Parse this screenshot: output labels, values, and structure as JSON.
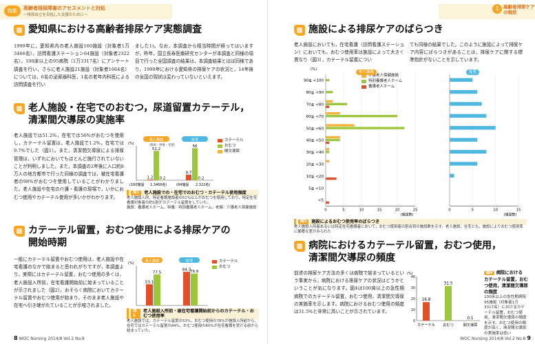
{
  "left": {
    "header": {
      "tag": "特集",
      "title": "高齢者排尿障害のアセスメントと対処",
      "subtitle": "～排尿自立を目指した支援のために～"
    },
    "s1": {
      "title": "愛知県における高齢者排尿ケア実態調査",
      "col1": "1999年に，愛知県内の老人施設160施設（対象者1万3466名），訪問看護ステーション64施設（対象者2322名），100床以上の95病院（1万3317名）にアンケート調査を行い，さらに老人施設21施設（対象者1664名）については，6名の泌尿器科医，1名の老年内科医による訪問調査を行い",
      "col2": "ました1)。なお，本調査から相当時間が経ってはいますが，昨年，国立長寿医療研究センターが本調査と同様の項目で行った全国調査の結果は，本調査結果とほぼ同様であり，1999年における愛知県の排尿ケアの状況と，14年後の全国の現状は変わっていないといえます。"
    },
    "s2": {
      "title1": "老人施設・在宅でのおむつ，尿道留置カテーテル，",
      "title2": "清潔間欠導尿の実施率",
      "text": "老人施設では51.2%，在宅では56%がおむつを使用し，カテーテル留置は，老人施設で1.2%，在宅では9.7%でした（図1）。また，清潔間欠導尿による排尿管理は，いずれにおいてもほとんど施行されていないことが判明しました。また，本調査の2年後に入口約8万人の地方都市で行った同様の調査では，被在宅看護者の98%がおむつを使用していることがわかりました。老人施設や在宅の介護・看護の現場で，いかにおむつ使用やカテーテル使用が多いかがわかります。",
      "fig_ref": "図1"
    },
    "chart1": {
      "title": "老人施設での・在宅でのおむつ・カテーテル使用頻度",
      "fignum": "図1",
      "ylabel": "(%)",
      "group_labels": [
        "老人施設",
        "在宅"
      ],
      "group_sub": [
        "（職員・特養・老健）",
        ""
      ],
      "n_labels": [
        "(160施設",
        "1,3466名)",
        "(64施設",
        "2,322名)"
      ],
      "caption": "老人施設入所，特定看護施設者の51%以上がおむつを使用しており，特定在宅看護対象者の約1割がカテーテル留置をしていた。",
      "caption2": "施設：養護老人ホーム，特養：特別養護老人ホーム，老健：介護老人保健施設"
    },
    "s3": {
      "title1": "カテーテル留置，おむつ使用による排尿ケアの",
      "title2": "開始時期",
      "text": "一般にカテーテル留置やおむつ使用は，老人施設や在宅看護のなかで始まると思われがちですが，本調査より，実際にはカテーテル留置，おむつ使用の多くは，老人施設入所前，在宅看護開始前に始まっていることが示されました（図2）。おそらく病院においてカテーテル留置やおむつ使用が始まり，そのまま老人施設や在宅へ引き継がれていることが示唆されました。",
      "fig_ref": "図2"
    },
    "chart2": {
      "title": "老人施設入所前・被在宅看護開始前からのカテーテル・おむつ使用率",
      "fignum": "図2",
      "ylabel": "(%)",
      "group_labels": [
        "老人施設",
        "在宅"
      ],
      "caption": "老人施設では，カテーテル留置の53%，おむつ使用の78%が施設入所前から，在宅ではカテーテル留置の84%，おむつ使用の80%が在宅看護を受ける前から始まっていた。"
    },
    "footer": {
      "page": "8",
      "journal": "WOC Nursing",
      "issue": "2014/8 Vol.2 No.8"
    }
  },
  "right": {
    "header": {
      "badge": "1",
      "title": "高齢者排尿ケア",
      "title2": "の現状"
    },
    "s4": {
      "title": "施設による排尿ケアのばらつき",
      "col1": "老人施設においても，在宅看護（訪問看護ステーション）においても，おむつ使用率は施設によって大きく異なり（図3），カテーテル留置につい",
      "col2": "ても同様の結果でした。このように施設によって排尿ケア内容にばらつきがあることは，排尿ケアに関する標準指針がないことを示しています。",
      "fig_ref": "図3"
    },
    "chart3": {
      "title": "施設によるおむつ使用率のばらつき",
      "fignum": "図3",
      "ylabel": "(%)",
      "xlabel_left": "(施設数)",
      "xlabel_right": "(施設数)",
      "caption": "老人施設入所者あるいは特定在宅看護者において，おむつ使用者の割合別の施設数を示す。老人施設，在宅とも，施設によりおむつ使用率に顕著な差がみられた"
    },
    "s5": {
      "title1": "病院におけるカテーテル留置，おむつ使用，",
      "title2": "清潔間欠導尿の頻度",
      "text": "前述の排尿ケア方法の多くは病院で始まっているという事実から，病院における排尿ケアの状況はどうかということが気になります。図4は100床以上の急性期病院でのカテーテル留置，おむつ使用，清潔間欠導尿の実施率を示します。病院におけるおむつ使用の頻度は31.5%と非常に高いことが示されています。",
      "fig_ref": "図4"
    },
    "chart4": {
      "fignum": "図4",
      "side_title": "病院における カテーテル留置，おむつ使用，清潔間欠導尿の頻度",
      "ylabel": "(%)",
      "caption": "100床以上の急性期病院95施設（対象者1万3317名）におけるカテーテル留置，おむつ使用，清潔間欠導尿の頻度を示す。おむつ使用の頻度が高く，清潔間欠導尿の実施率は低い"
    },
    "footer": {
      "journal": "WOC Nursing",
      "issue": "2014/8 Vol.2 No.8",
      "page": "9"
    }
  },
  "colors": {
    "catheter": "#e2502a",
    "diaper": "#9cc63b",
    "cic": "#f3b23c",
    "orange": "#f6a623",
    "blue": "#4fb8e0"
  },
  "chart_data": [
    {
      "type": "bar",
      "title": "老人施設での・在宅でのおむつ・カテーテル使用頻度",
      "categories": [
        "老人施設",
        "在宅"
      ],
      "series": [
        {
          "name": "カテーテル",
          "values": [
            1.2,
            9.7
          ]
        },
        {
          "name": "おむつ",
          "values": [
            51.2,
            56
          ]
        },
        {
          "name": "間欠導尿",
          "values": [
            0.2,
            0.2
          ]
        }
      ],
      "ylabel": "(%)",
      "ylim": [
        0,
        60
      ],
      "legend": "right"
    },
    {
      "type": "bar",
      "title": "老人施設入所前・被在宅看護開始前からのカテーテル・おむつ使用率",
      "categories": [
        "老人施設",
        "在宅"
      ],
      "series": [
        {
          "name": "カテーテル",
          "values": [
            53.1,
            84.3
          ]
        },
        {
          "name": "おむつ",
          "values": [
            77.5,
            79.9
          ]
        }
      ],
      "ylabel": "(%)",
      "ylim": [
        0,
        100
      ],
      "legend": "right"
    },
    {
      "type": "bar",
      "title": "施設によるおむつ使用率のばらつき",
      "categories": [
        "90≦ <100",
        "80≦ <90",
        "70≦ <80",
        "60≦ <70",
        "50≦ <60",
        "40≦ <50",
        "30≦ <40",
        "20≦ <30",
        "10≦ <20",
        "5≦ <10",
        "<5"
      ],
      "panels": [
        {
          "name": "老人施設",
          "xlim": [
            0,
            25
          ],
          "xticks": [
            0,
            5,
            10,
            15,
            20,
            25
          ],
          "series": [
            {
              "name": "介護老人保健施設",
              "values": [
                0,
                0,
                2,
                4,
                8,
                4,
                1,
                1,
                0,
                0,
                0
              ]
            },
            {
              "name": "特別養護老人ホーム",
              "values": [
                1,
                2,
                6,
                20,
                22,
                4,
                1,
                0,
                0,
                0,
                0
              ]
            },
            {
              "name": "養護老人ホーム",
              "values": [
                0,
                0,
                1,
                0,
                0,
                1,
                0,
                0,
                3,
                0,
                1
              ]
            }
          ]
        },
        {
          "name": "在宅",
          "xlim": [
            0,
            15
          ],
          "xticks": [
            0,
            5,
            10,
            15
          ],
          "series": [
            {
              "name": "在宅",
              "values": [
                5,
                6,
                7,
                8,
                10,
                6,
                8,
                6,
                1,
                0,
                0
              ]
            }
          ]
        }
      ],
      "ylabel": "(%)",
      "xlabel": "(施設数)",
      "legend": "top-left"
    },
    {
      "type": "bar",
      "categories": [
        "カテーテル",
        "おむつ",
        "間欠導尿"
      ],
      "values": [
        16.8,
        31.5,
        0.1
      ],
      "ylabel": "(%)",
      "ylim": [
        0,
        40
      ]
    }
  ]
}
